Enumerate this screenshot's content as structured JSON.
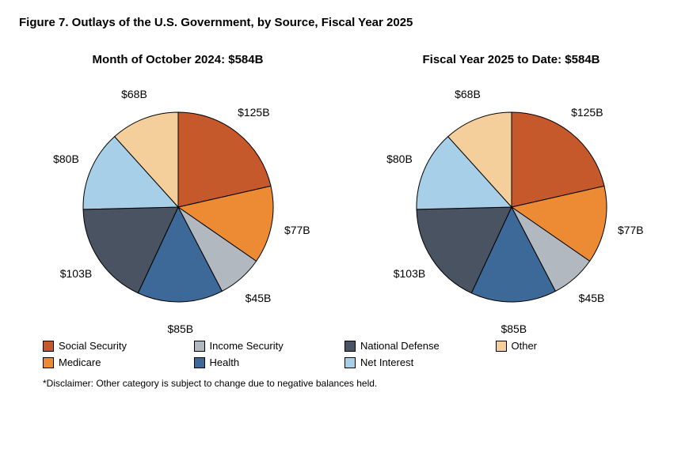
{
  "figure_title": "Figure 7. Outlays of the U.S. Government, by Source, Fiscal Year 2025",
  "disclaimer": "*Disclaimer: Other category is subject to change due to negative balances held.",
  "pie_radius": 120,
  "stroke_color": "#000000",
  "stroke_width": 1,
  "label_radius_factor": 1.28,
  "legend": [
    {
      "label": "Social Security",
      "color": "#c6592b"
    },
    {
      "label": "Income Security",
      "color": "#b1b8c0"
    },
    {
      "label": "National Defense",
      "color": "#4a5362"
    },
    {
      "label": "Other",
      "color": "#f5cf9b"
    },
    {
      "label": "Medicare",
      "color": "#ed8b34"
    },
    {
      "label": "Health",
      "color": "#3d6998"
    },
    {
      "label": "Net Interest",
      "color": "#a7cfe8"
    }
  ],
  "charts": [
    {
      "title": "Month of October 2024: $584B",
      "slices": [
        {
          "name": "Social Security",
          "value": 125,
          "label": "$125B",
          "color": "#c6592b"
        },
        {
          "name": "Medicare",
          "value": 77,
          "label": "$77B",
          "color": "#ed8b34"
        },
        {
          "name": "Income Security",
          "value": 45,
          "label": "$45B",
          "color": "#b1b8c0"
        },
        {
          "name": "Health",
          "value": 85,
          "label": "$85B",
          "color": "#3d6998"
        },
        {
          "name": "National Defense",
          "value": 103,
          "label": "$103B",
          "color": "#4a5362"
        },
        {
          "name": "Net Interest",
          "value": 80,
          "label": "$80B",
          "color": "#a7cfe8"
        },
        {
          "name": "Other",
          "value": 68,
          "label": "$68B",
          "color": "#f5cf9b"
        }
      ]
    },
    {
      "title": "Fiscal Year 2025 to Date: $584B",
      "slices": [
        {
          "name": "Social Security",
          "value": 125,
          "label": "$125B",
          "color": "#c6592b"
        },
        {
          "name": "Medicare",
          "value": 77,
          "label": "$77B",
          "color": "#ed8b34"
        },
        {
          "name": "Income Security",
          "value": 45,
          "label": "$45B",
          "color": "#b1b8c0"
        },
        {
          "name": "Health",
          "value": 85,
          "label": "$85B",
          "color": "#3d6998"
        },
        {
          "name": "National Defense",
          "value": 103,
          "label": "$103B",
          "color": "#4a5362"
        },
        {
          "name": "Net Interest",
          "value": 80,
          "label": "$80B",
          "color": "#a7cfe8"
        },
        {
          "name": "Other",
          "value": 68,
          "label": "$68B",
          "color": "#f5cf9b"
        }
      ]
    }
  ]
}
